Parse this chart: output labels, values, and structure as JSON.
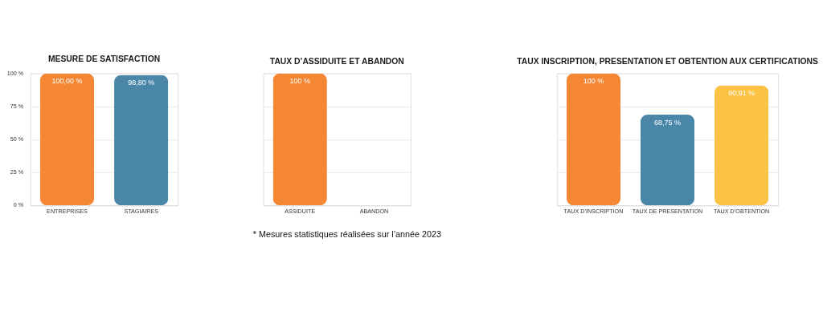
{
  "chart_data": [
    {
      "type": "bar",
      "title": "MESURE DE SATISFACTION",
      "categories": [
        "ENTREPRISES",
        "STAGIAIRES"
      ],
      "values": [
        100,
        98.8
      ],
      "colors": [
        "#f58634",
        "#4a86a8"
      ],
      "value_labels": [
        "100,00 %",
        "98,80 %"
      ],
      "ylim": [
        0,
        100
      ],
      "yticks": [
        {
          "value": 0,
          "label": "0 %"
        },
        {
          "value": 25,
          "label": "25 %"
        },
        {
          "value": 50,
          "label": "50 %"
        },
        {
          "value": 75,
          "label": "75 %"
        },
        {
          "value": 100,
          "label": "100 %"
        }
      ],
      "grid": "y"
    },
    {
      "type": "bar",
      "title": "TAUX D’ASSIDUITE ET ABANDON",
      "categories": [
        "ASSIDUITE",
        "ABANDON"
      ],
      "values": [
        100,
        0
      ],
      "colors": [
        "#f58634",
        "#4a86a8"
      ],
      "value_labels": [
        "100 %",
        null
      ],
      "ylim": [
        0,
        100
      ],
      "yticks": [
        {
          "value": 0,
          "label": null
        },
        {
          "value": 25,
          "label": null
        },
        {
          "value": 50,
          "label": null
        },
        {
          "value": 75,
          "label": null
        },
        {
          "value": 100,
          "label": null
        }
      ],
      "grid": "y",
      "tick_labels": "x",
      "annotations": [
        "* Mesures statistiques réalisées sur l’année 2023"
      ]
    },
    {
      "type": "bar",
      "title": "TAUX INSCRIPTION, PRESENTATION ET OBTENTION AUX CERTIFICATIONS",
      "categories": [
        "TAUX D’INSCRIPTION",
        "TAUX DE PRESENTATION",
        "TAUX D’OBTENTION"
      ],
      "values": [
        100,
        68.75,
        90.91
      ],
      "colors": [
        "#f58634",
        "#4a86a8",
        "#fbc244"
      ],
      "value_labels": [
        "100 %",
        "68,75 %",
        "90,91 %"
      ],
      "ylim": [
        0,
        100
      ],
      "yticks": [
        {
          "value": 0,
          "label": null
        },
        {
          "value": 25,
          "label": null
        },
        {
          "value": 50,
          "label": null
        },
        {
          "value": 75,
          "label": null
        },
        {
          "value": 100,
          "label": null
        }
      ],
      "grid": "y",
      "tick_labels": "x"
    }
  ]
}
